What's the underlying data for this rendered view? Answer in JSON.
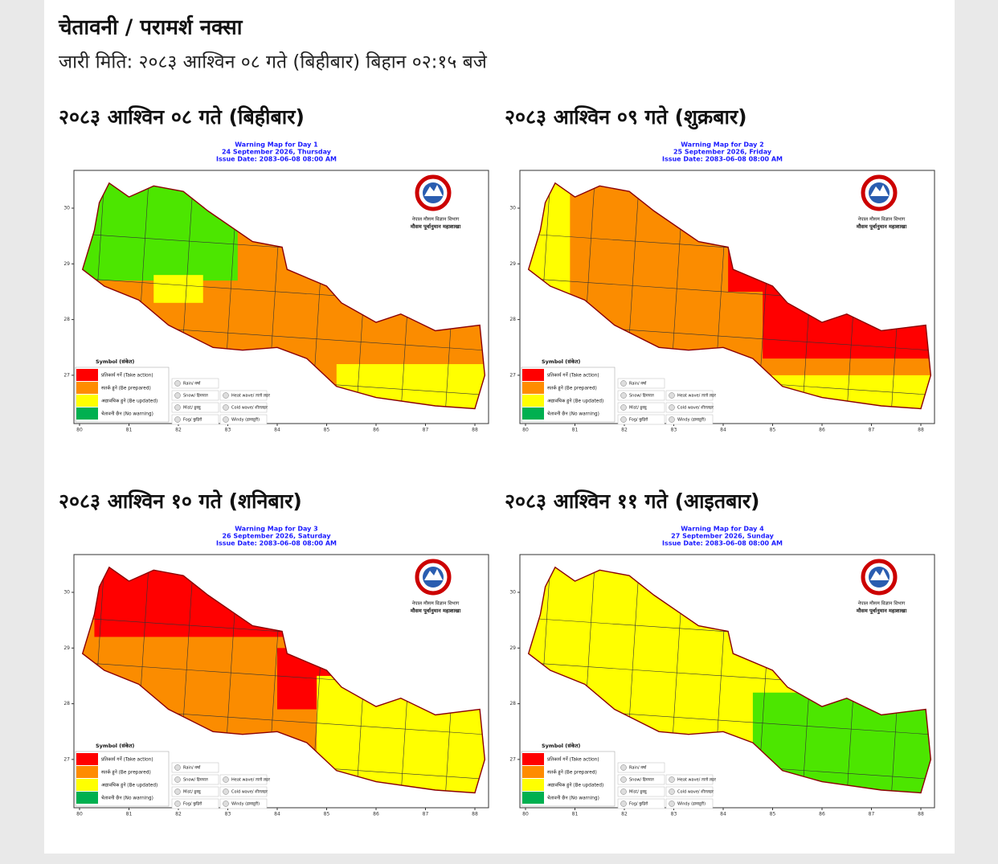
{
  "header": {
    "title": "चेतावनी / परामर्श नक्सा",
    "issued": "जारी मिति: २०८३ आश्विन ०८ गते (बिहीबार) बिहान ०२:१५ बजे"
  },
  "maps": [
    {
      "heading": "२०८३ आश्विन ०८ गते (बिहीबार)",
      "title": "Warning Map for Day 1",
      "date": "24 September 2026, Thursday",
      "issue": "Issue Date: 2083-06-08 08:00 AM"
    },
    {
      "heading": "२०८३ आश्विन ०९ गते (शुक्रबार)",
      "title": "Warning Map for Day 2",
      "date": "25 September 2026, Friday",
      "issue": "Issue Date: 2083-06-08 08:00 AM"
    },
    {
      "heading": "२०८३ आश्विन १० गते (शनिबार)",
      "title": "Warning Map for Day 3",
      "date": "26 September 2026, Saturday",
      "issue": "Issue Date: 2083-06-08 08:00 AM"
    },
    {
      "heading": "२०८३ आश्विन ११ गते (आइतबार)",
      "title": "Warning Map for Day 4",
      "date": "27 September 2026, Sunday",
      "issue": "Issue Date: 2083-06-08 08:00 AM"
    }
  ],
  "map_axes": {
    "xticks": [
      80,
      81,
      82,
      83,
      84,
      85,
      86,
      87,
      88
    ],
    "yticks": [
      27,
      28,
      29,
      30
    ]
  },
  "legend": {
    "title": "Symbol (संकेत)",
    "levels": [
      "प्रतिकार्य गर्ने (Take action)",
      "सतर्क हुने (Be prepared)",
      "अद्यावधिक हुने (Be updated)",
      "चेतावनी छैन (No warning)"
    ],
    "symbols": [
      "Rain/ वर्षा",
      "Snow/ हिमपात",
      "Mist/ हुस्सु",
      "Fog/ कुहिरो",
      "Heat wave/ तातो लहर",
      "Cold wave/ शीतलहर",
      "Windy (हावाहुरी)"
    ]
  },
  "logo": {
    "line1": "नेपाल मौसम विज्ञान विभाग",
    "line2": "मौसम पूर्वानुमान महाशाखा"
  }
}
